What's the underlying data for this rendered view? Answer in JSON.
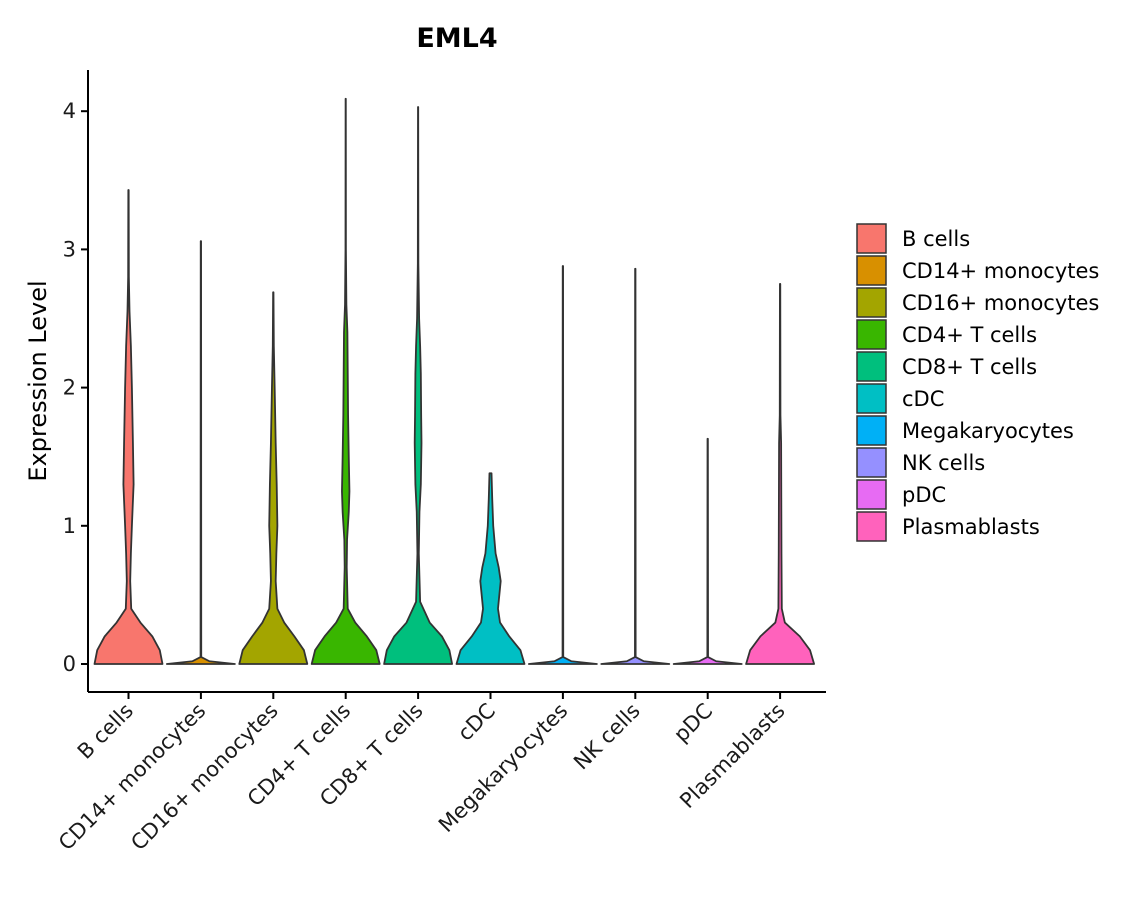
{
  "chart_data": {
    "type": "violin",
    "title": "EML4",
    "xlabel": "",
    "ylabel": "Expression Level",
    "ylim": [
      0,
      4.2
    ],
    "y_ticks": [
      "0",
      "1",
      "2",
      "3",
      "4"
    ],
    "grid": false,
    "legend_position": "right",
    "categories": [
      "B cells",
      "CD14+ monocytes",
      "CD16+ monocytes",
      "CD4+ T cells",
      "CD8+ T cells",
      "cDC",
      "Megakaryocytes",
      "NK cells",
      "pDC",
      "Plasmablasts"
    ],
    "colors": [
      "#F8766D",
      "#D89000",
      "#A3A500",
      "#39B600",
      "#00BF7D",
      "#00BFC4",
      "#00B0F6",
      "#9590FF",
      "#E76BF3",
      "#FF62BC"
    ],
    "series": [
      {
        "name": "B cells",
        "max": 3.43,
        "density": [
          [
            0,
            1.0
          ],
          [
            0.1,
            0.92
          ],
          [
            0.2,
            0.7
          ],
          [
            0.3,
            0.35
          ],
          [
            0.4,
            0.08
          ],
          [
            0.6,
            0.05
          ],
          [
            0.8,
            0.07
          ],
          [
            1.0,
            0.1
          ],
          [
            1.3,
            0.15
          ],
          [
            1.6,
            0.13
          ],
          [
            2.0,
            0.1
          ],
          [
            2.3,
            0.07
          ],
          [
            2.55,
            0.03
          ],
          [
            2.8,
            0.01
          ],
          [
            3.43,
            0.005
          ]
        ]
      },
      {
        "name": "CD14+ monocytes",
        "max": 3.06,
        "density": [
          [
            0,
            1.0
          ],
          [
            0.02,
            0.25
          ],
          [
            0.05,
            0.01
          ],
          [
            3.06,
            0.005
          ]
        ]
      },
      {
        "name": "CD16+ monocytes",
        "max": 2.69,
        "density": [
          [
            0,
            1.0
          ],
          [
            0.1,
            0.9
          ],
          [
            0.2,
            0.62
          ],
          [
            0.3,
            0.32
          ],
          [
            0.4,
            0.12
          ],
          [
            0.6,
            0.07
          ],
          [
            0.8,
            0.09
          ],
          [
            1.0,
            0.12
          ],
          [
            1.3,
            0.1
          ],
          [
            1.6,
            0.07
          ],
          [
            2.0,
            0.04
          ],
          [
            2.3,
            0.015
          ],
          [
            2.69,
            0.005
          ]
        ]
      },
      {
        "name": "CD4+ T cells",
        "max": 4.09,
        "density": [
          [
            0,
            1.0
          ],
          [
            0.1,
            0.9
          ],
          [
            0.2,
            0.62
          ],
          [
            0.3,
            0.28
          ],
          [
            0.4,
            0.06
          ],
          [
            0.7,
            0.03
          ],
          [
            0.9,
            0.04
          ],
          [
            1.1,
            0.09
          ],
          [
            1.25,
            0.11
          ],
          [
            1.5,
            0.09
          ],
          [
            1.8,
            0.07
          ],
          [
            2.1,
            0.06
          ],
          [
            2.4,
            0.05
          ],
          [
            2.6,
            0.02
          ],
          [
            3.0,
            0.006
          ],
          [
            4.09,
            0.003
          ]
        ]
      },
      {
        "name": "CD8+ T cells",
        "max": 4.03,
        "density": [
          [
            0,
            1.0
          ],
          [
            0.1,
            0.92
          ],
          [
            0.2,
            0.7
          ],
          [
            0.3,
            0.34
          ],
          [
            0.45,
            0.06
          ],
          [
            0.8,
            0.02
          ],
          [
            1.1,
            0.04
          ],
          [
            1.3,
            0.08
          ],
          [
            1.6,
            0.1
          ],
          [
            1.8,
            0.09
          ],
          [
            2.1,
            0.08
          ],
          [
            2.3,
            0.06
          ],
          [
            2.5,
            0.03
          ],
          [
            2.9,
            0.008
          ],
          [
            4.03,
            0.003
          ]
        ]
      },
      {
        "name": "cDC",
        "max": 1.38,
        "density": [
          [
            0,
            1.0
          ],
          [
            0.1,
            0.88
          ],
          [
            0.2,
            0.55
          ],
          [
            0.3,
            0.28
          ],
          [
            0.4,
            0.22
          ],
          [
            0.5,
            0.26
          ],
          [
            0.6,
            0.3
          ],
          [
            0.7,
            0.24
          ],
          [
            0.8,
            0.15
          ],
          [
            1.0,
            0.08
          ],
          [
            1.2,
            0.05
          ],
          [
            1.38,
            0.03
          ]
        ]
      },
      {
        "name": "Megakaryocytes",
        "max": 2.88,
        "density": [
          [
            0,
            1.0
          ],
          [
            0.02,
            0.25
          ],
          [
            0.05,
            0.01
          ],
          [
            2.88,
            0.005
          ]
        ]
      },
      {
        "name": "NK cells",
        "max": 2.86,
        "density": [
          [
            0,
            1.0
          ],
          [
            0.02,
            0.25
          ],
          [
            0.05,
            0.01
          ],
          [
            2.86,
            0.005
          ]
        ]
      },
      {
        "name": "pDC",
        "max": 1.63,
        "density": [
          [
            0,
            1.0
          ],
          [
            0.02,
            0.25
          ],
          [
            0.05,
            0.01
          ],
          [
            1.63,
            0.005
          ]
        ]
      },
      {
        "name": "Plasmablasts",
        "max": 2.75,
        "density": [
          [
            0,
            1.0
          ],
          [
            0.1,
            0.88
          ],
          [
            0.2,
            0.58
          ],
          [
            0.3,
            0.14
          ],
          [
            0.4,
            0.05
          ],
          [
            0.8,
            0.04
          ],
          [
            1.2,
            0.035
          ],
          [
            1.6,
            0.03
          ],
          [
            1.8,
            0.01
          ],
          [
            2.75,
            0.005
          ]
        ]
      }
    ]
  }
}
